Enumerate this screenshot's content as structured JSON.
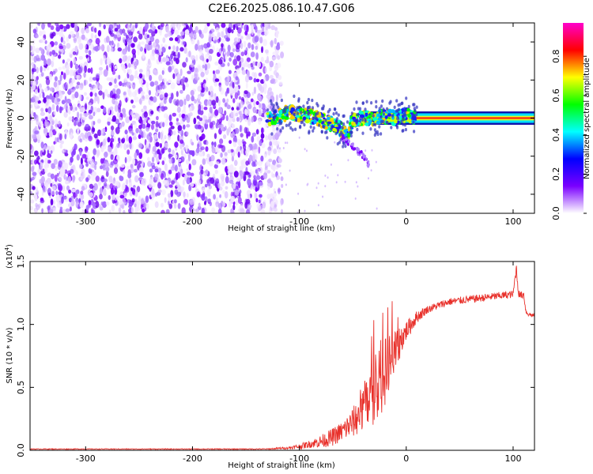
{
  "title": "C2E6.2025.086.10.47.G06",
  "chart_data": [
    {
      "type": "heatmap",
      "panel": "spectrogram",
      "xlabel": "Height of straight line (km)",
      "ylabel": "Frequency (Hz)",
      "xlim": [
        -352,
        120
      ],
      "ylim": [
        -50,
        50
      ],
      "x_ticks": [
        -300,
        -200,
        -100,
        0,
        100
      ],
      "x_tick_labels": [
        "-300",
        "-200",
        "-100",
        "0",
        "100"
      ],
      "y_ticks": [
        -40,
        -20,
        0,
        20,
        40
      ],
      "y_tick_labels": [
        "-40",
        "-20",
        "0",
        "20",
        "40"
      ],
      "noise_region_x": [
        -352,
        -125
      ],
      "signal_track": {
        "x": [
          -130,
          -120,
          -110,
          -100,
          -90,
          -80,
          -70,
          -60,
          -55,
          -50,
          -40,
          -30,
          -20,
          -10,
          0,
          5,
          120
        ],
        "y": [
          0,
          1,
          3,
          2,
          1,
          -1,
          -3,
          -6,
          -10,
          -1,
          0,
          0,
          1,
          0,
          2,
          0,
          0
        ]
      },
      "secondary_track": {
        "x": [
          -60,
          -50,
          -40,
          -35
        ],
        "y": [
          -10,
          -15,
          -20,
          -25
        ]
      },
      "colorbar": {
        "label": "Normalized spectral amplitude",
        "range": [
          0,
          0.97
        ],
        "ticks": [
          0.0,
          0.2,
          0.4,
          0.6,
          0.8
        ],
        "tick_labels": [
          "0.0",
          "0.2",
          "0.4",
          "0.6",
          "0.8"
        ],
        "colormap": [
          "#ffffff",
          "#7a00ff",
          "#0000ff",
          "#00ffff",
          "#00ff00",
          "#ffff00",
          "#ff0000",
          "#ff00cc"
        ]
      }
    },
    {
      "type": "line",
      "panel": "snr",
      "xlabel": "Height of straight line (km)",
      "ylabel": "SNR (10 * v/v)",
      "scale_label": "(x10",
      "scale_exp": "4",
      "scale_close": ")",
      "xlim": [
        -352,
        120
      ],
      "ylim": [
        0,
        1.5
      ],
      "x_ticks": [
        -300,
        -200,
        -100,
        0,
        100
      ],
      "x_tick_labels": [
        "-300",
        "-200",
        "-100",
        "0",
        "100"
      ],
      "y_ticks": [
        0.0,
        0.5,
        1.0,
        1.5
      ],
      "y_tick_labels": [
        "0.0",
        "0.5",
        "1.0",
        "1.5"
      ],
      "color": "#e8302a",
      "x": [
        -352,
        -300,
        -200,
        -130,
        -110,
        -100,
        -90,
        -80,
        -70,
        -60,
        -50,
        -40,
        -35,
        -30,
        -25,
        -20,
        -15,
        -10,
        -5,
        0,
        10,
        20,
        30,
        40,
        50,
        60,
        70,
        80,
        90,
        100,
        103,
        105,
        107,
        110,
        112,
        115,
        120
      ],
      "y": [
        0.01,
        0.01,
        0.01,
        0.01,
        0.02,
        0.03,
        0.05,
        0.07,
        0.1,
        0.15,
        0.22,
        0.32,
        0.38,
        0.48,
        0.55,
        0.62,
        0.7,
        0.78,
        0.88,
        0.95,
        1.06,
        1.12,
        1.15,
        1.18,
        1.19,
        1.2,
        1.21,
        1.22,
        1.23,
        1.24,
        1.45,
        1.25,
        1.23,
        1.24,
        1.1,
        1.08,
        1.07
      ],
      "noise_amp": [
        0.003,
        0.003,
        0.003,
        0.004,
        0.01,
        0.02,
        0.03,
        0.05,
        0.07,
        0.08,
        0.12,
        0.18,
        0.25,
        0.3,
        0.3,
        0.28,
        0.25,
        0.18,
        0.12,
        0.08,
        0.05,
        0.03,
        0.03,
        0.03,
        0.03,
        0.03,
        0.03,
        0.03,
        0.03,
        0.03,
        0.05,
        0.03,
        0.03,
        0.03,
        0.02,
        0.02,
        0.02
      ]
    }
  ]
}
